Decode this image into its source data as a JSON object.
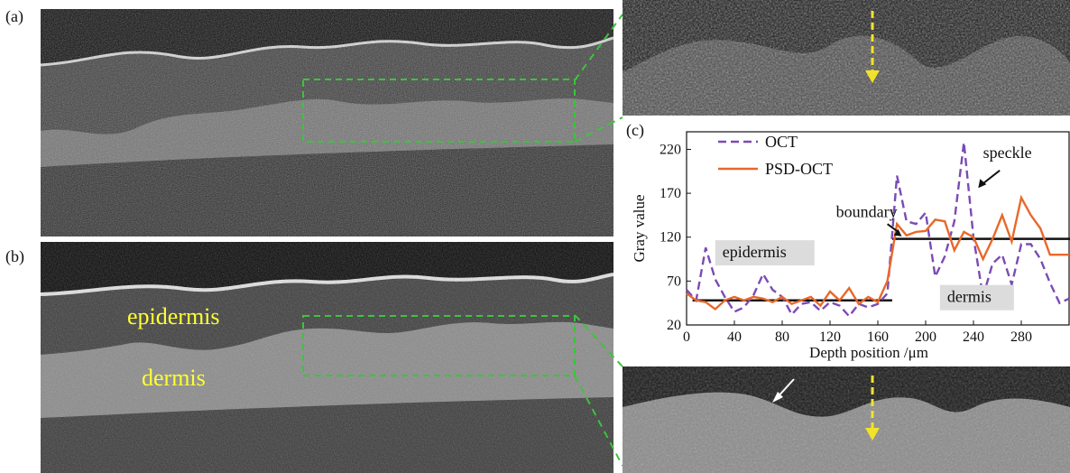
{
  "panels": {
    "a_label": "(a)",
    "b_label": "(b)",
    "c_label": "(c)"
  },
  "image_annotations": {
    "epidermis": "epidermis",
    "dermis": "dermis"
  },
  "colors": {
    "oct": "#7b4bb5",
    "psd": "#e8682a",
    "boundary": "#111111",
    "roi_box": "#3cc43c",
    "arrow_yellow": "#f2e32a"
  },
  "chart_data": {
    "type": "line",
    "xlabel": "Depth  position /μm",
    "ylabel": "Gray value",
    "xlim": [
      0,
      320
    ],
    "ylim": [
      20,
      240
    ],
    "xticks": [
      0,
      40,
      80,
      120,
      160,
      200,
      240,
      280
    ],
    "yticks": [
      20,
      70,
      120,
      170,
      220
    ],
    "legend_position": "top-left",
    "series": [
      {
        "name": "OCT",
        "style": "dashed",
        "x": [
          0,
          8,
          16,
          24,
          32,
          40,
          48,
          56,
          64,
          72,
          80,
          88,
          96,
          104,
          112,
          120,
          128,
          136,
          144,
          152,
          160,
          168,
          176,
          184,
          192,
          200,
          208,
          216,
          224,
          232,
          240,
          248,
          256,
          264,
          272,
          280,
          288,
          296,
          304,
          312,
          320
        ],
        "values": [
          60,
          48,
          108,
          72,
          52,
          35,
          40,
          54,
          78,
          60,
          52,
          32,
          44,
          46,
          36,
          46,
          42,
          30,
          44,
          40,
          44,
          56,
          190,
          138,
          135,
          148,
          75,
          98,
          138,
          228,
          120,
          52,
          90,
          100,
          66,
          112,
          112,
          95,
          68,
          45,
          50
        ]
      },
      {
        "name": "PSD-OCT",
        "style": "solid",
        "x": [
          0,
          8,
          16,
          24,
          32,
          40,
          48,
          56,
          64,
          72,
          80,
          88,
          96,
          104,
          112,
          120,
          128,
          136,
          144,
          152,
          160,
          168,
          176,
          184,
          192,
          200,
          208,
          216,
          224,
          232,
          240,
          248,
          256,
          264,
          272,
          280,
          288,
          296,
          304,
          312,
          320
        ],
        "values": [
          56,
          48,
          46,
          38,
          48,
          52,
          48,
          52,
          50,
          46,
          52,
          44,
          48,
          52,
          42,
          58,
          48,
          62,
          44,
          52,
          46,
          70,
          135,
          122,
          126,
          127,
          140,
          138,
          105,
          126,
          120,
          95,
          118,
          145,
          115,
          165,
          145,
          130,
          100,
          100,
          100
        ]
      }
    ],
    "boundary_lines": [
      {
        "x0": 5,
        "x1": 172,
        "y": 48
      },
      {
        "x0": 172,
        "x1": 322,
        "y": 118
      }
    ],
    "annotations": [
      {
        "text": "epidermis",
        "x": 30,
        "y": 97
      },
      {
        "text": "dermis",
        "x": 218,
        "y": 46
      },
      {
        "text": "boundary",
        "x": 125,
        "y": 143
      },
      {
        "text": "speckle",
        "x": 248,
        "y": 210
      }
    ]
  }
}
